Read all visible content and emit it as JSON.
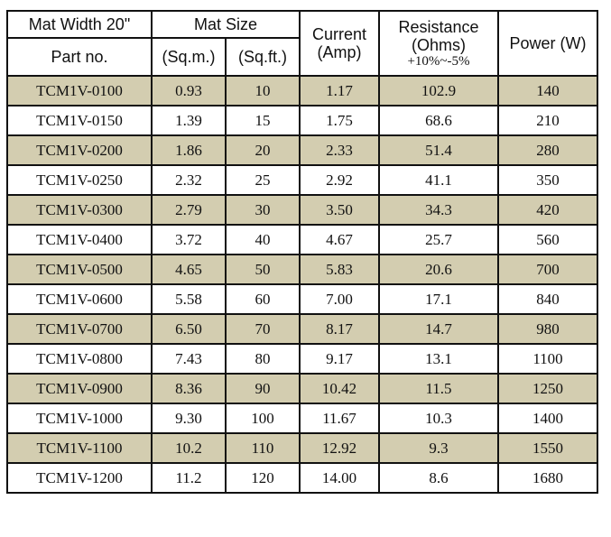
{
  "header": {
    "mat_width": "Mat Width 20\"",
    "part_no": "Part no.",
    "mat_size": "Mat Size",
    "sqm": "(Sq.m.)",
    "sqft": "(Sq.ft.)",
    "current_line1": "Current",
    "current_line2": "(Amp)",
    "resistance_line1": "Resistance",
    "resistance_line2": "(Ohms)",
    "resistance_tolerance": "+10%~-5%",
    "power": "Power (W)"
  },
  "rows": [
    {
      "part": "TCM1V-0100",
      "sqm": "0.93",
      "sqft": "10",
      "amp": "1.17",
      "ohms": "102.9",
      "watts": "140"
    },
    {
      "part": "TCM1V-0150",
      "sqm": "1.39",
      "sqft": "15",
      "amp": "1.75",
      "ohms": "68.6",
      "watts": "210"
    },
    {
      "part": "TCM1V-0200",
      "sqm": "1.86",
      "sqft": "20",
      "amp": "2.33",
      "ohms": "51.4",
      "watts": "280"
    },
    {
      "part": "TCM1V-0250",
      "sqm": "2.32",
      "sqft": "25",
      "amp": "2.92",
      "ohms": "41.1",
      "watts": "350"
    },
    {
      "part": "TCM1V-0300",
      "sqm": "2.79",
      "sqft": "30",
      "amp": "3.50",
      "ohms": "34.3",
      "watts": "420"
    },
    {
      "part": "TCM1V-0400",
      "sqm": "3.72",
      "sqft": "40",
      "amp": "4.67",
      "ohms": "25.7",
      "watts": "560"
    },
    {
      "part": "TCM1V-0500",
      "sqm": "4.65",
      "sqft": "50",
      "amp": "5.83",
      "ohms": "20.6",
      "watts": "700"
    },
    {
      "part": "TCM1V-0600",
      "sqm": "5.58",
      "sqft": "60",
      "amp": "7.00",
      "ohms": "17.1",
      "watts": "840"
    },
    {
      "part": "TCM1V-0700",
      "sqm": "6.50",
      "sqft": "70",
      "amp": "8.17",
      "ohms": "14.7",
      "watts": "980"
    },
    {
      "part": "TCM1V-0800",
      "sqm": "7.43",
      "sqft": "80",
      "amp": "9.17",
      "ohms": "13.1",
      "watts": "1100"
    },
    {
      "part": "TCM1V-0900",
      "sqm": "8.36",
      "sqft": "90",
      "amp": "10.42",
      "ohms": "11.5",
      "watts": "1250"
    },
    {
      "part": "TCM1V-1000",
      "sqm": "9.30",
      "sqft": "100",
      "amp": "11.67",
      "ohms": "10.3",
      "watts": "1400"
    },
    {
      "part": "TCM1V-1100",
      "sqm": "10.2",
      "sqft": "110",
      "amp": "12.92",
      "ohms": "9.3",
      "watts": "1550"
    },
    {
      "part": "TCM1V-1200",
      "sqm": "11.2",
      "sqft": "120",
      "amp": "14.00",
      "ohms": "8.6",
      "watts": "1680"
    }
  ],
  "colors": {
    "shaded_row": "#d3cdb0",
    "plain_row": "#ffffff",
    "border": "#111111"
  }
}
